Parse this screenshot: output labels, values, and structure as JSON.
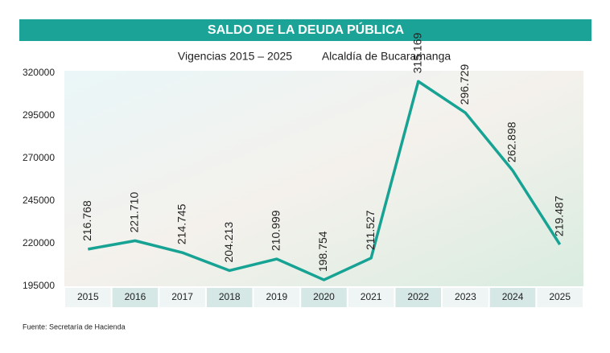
{
  "chart_data": {
    "type": "line",
    "title": "SALDO DE LA DEUDA PÚBLICA",
    "subtitle": "Vigencias 2015 – 2025",
    "annotations": [
      "Alcaldía de Bucaramanga"
    ],
    "source": "Fuente: Secretaría de Hacienda",
    "categories": [
      "2015",
      "2016",
      "2017",
      "2018",
      "2019",
      "2020",
      "2021",
      "2022",
      "2023",
      "2024",
      "2025"
    ],
    "series": [
      {
        "color": "#17a394",
        "values": [
          216768,
          221710,
          214745,
          204213,
          210999,
          198754,
          211527,
          315169,
          296729,
          262898,
          219487
        ],
        "value_labels": [
          "216.768",
          "221.710",
          "214.745",
          "204.213",
          "210.999",
          "198.754",
          "211.527",
          "315.169",
          "296.729",
          "262.898",
          "219.487"
        ]
      }
    ],
    "ylim": [
      195000,
      320000
    ],
    "yticks": [
      195000,
      220000,
      245000,
      270000,
      295000,
      320000
    ],
    "grid": false
  }
}
